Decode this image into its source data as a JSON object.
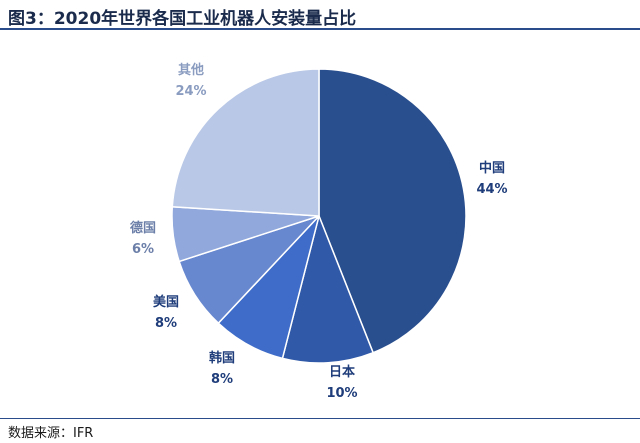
{
  "title": "图3：2020年世界各国工业机器人安装量占比",
  "source": "数据来源：IFR",
  "chart_data": {
    "type": "pie",
    "start": "12 o'clock",
    "direction": "clockwise",
    "slices": [
      {
        "label": "中国",
        "value": 44,
        "value_text": "44%",
        "color": "#2a4f8f",
        "label_color": "#1f3d7a"
      },
      {
        "label": "日本",
        "value": 10,
        "value_text": "10%",
        "color": "#3059a8",
        "label_color": "#1f3d7a"
      },
      {
        "label": "韩国",
        "value": 8,
        "value_text": "8%",
        "color": "#3e6cc8",
        "label_color": "#1f3d7a"
      },
      {
        "label": "美国",
        "value": 8,
        "value_text": "8%",
        "color": "#6787cf",
        "label_color": "#1f3d7a"
      },
      {
        "label": "德国",
        "value": 6,
        "value_text": "6%",
        "color": "#90a8dc",
        "label_color": "#6b7fa8"
      },
      {
        "label": "其他",
        "value": 24,
        "value_text": "24%",
        "color": "#b9c8e6",
        "label_color": "#8a9cc0"
      }
    ]
  }
}
